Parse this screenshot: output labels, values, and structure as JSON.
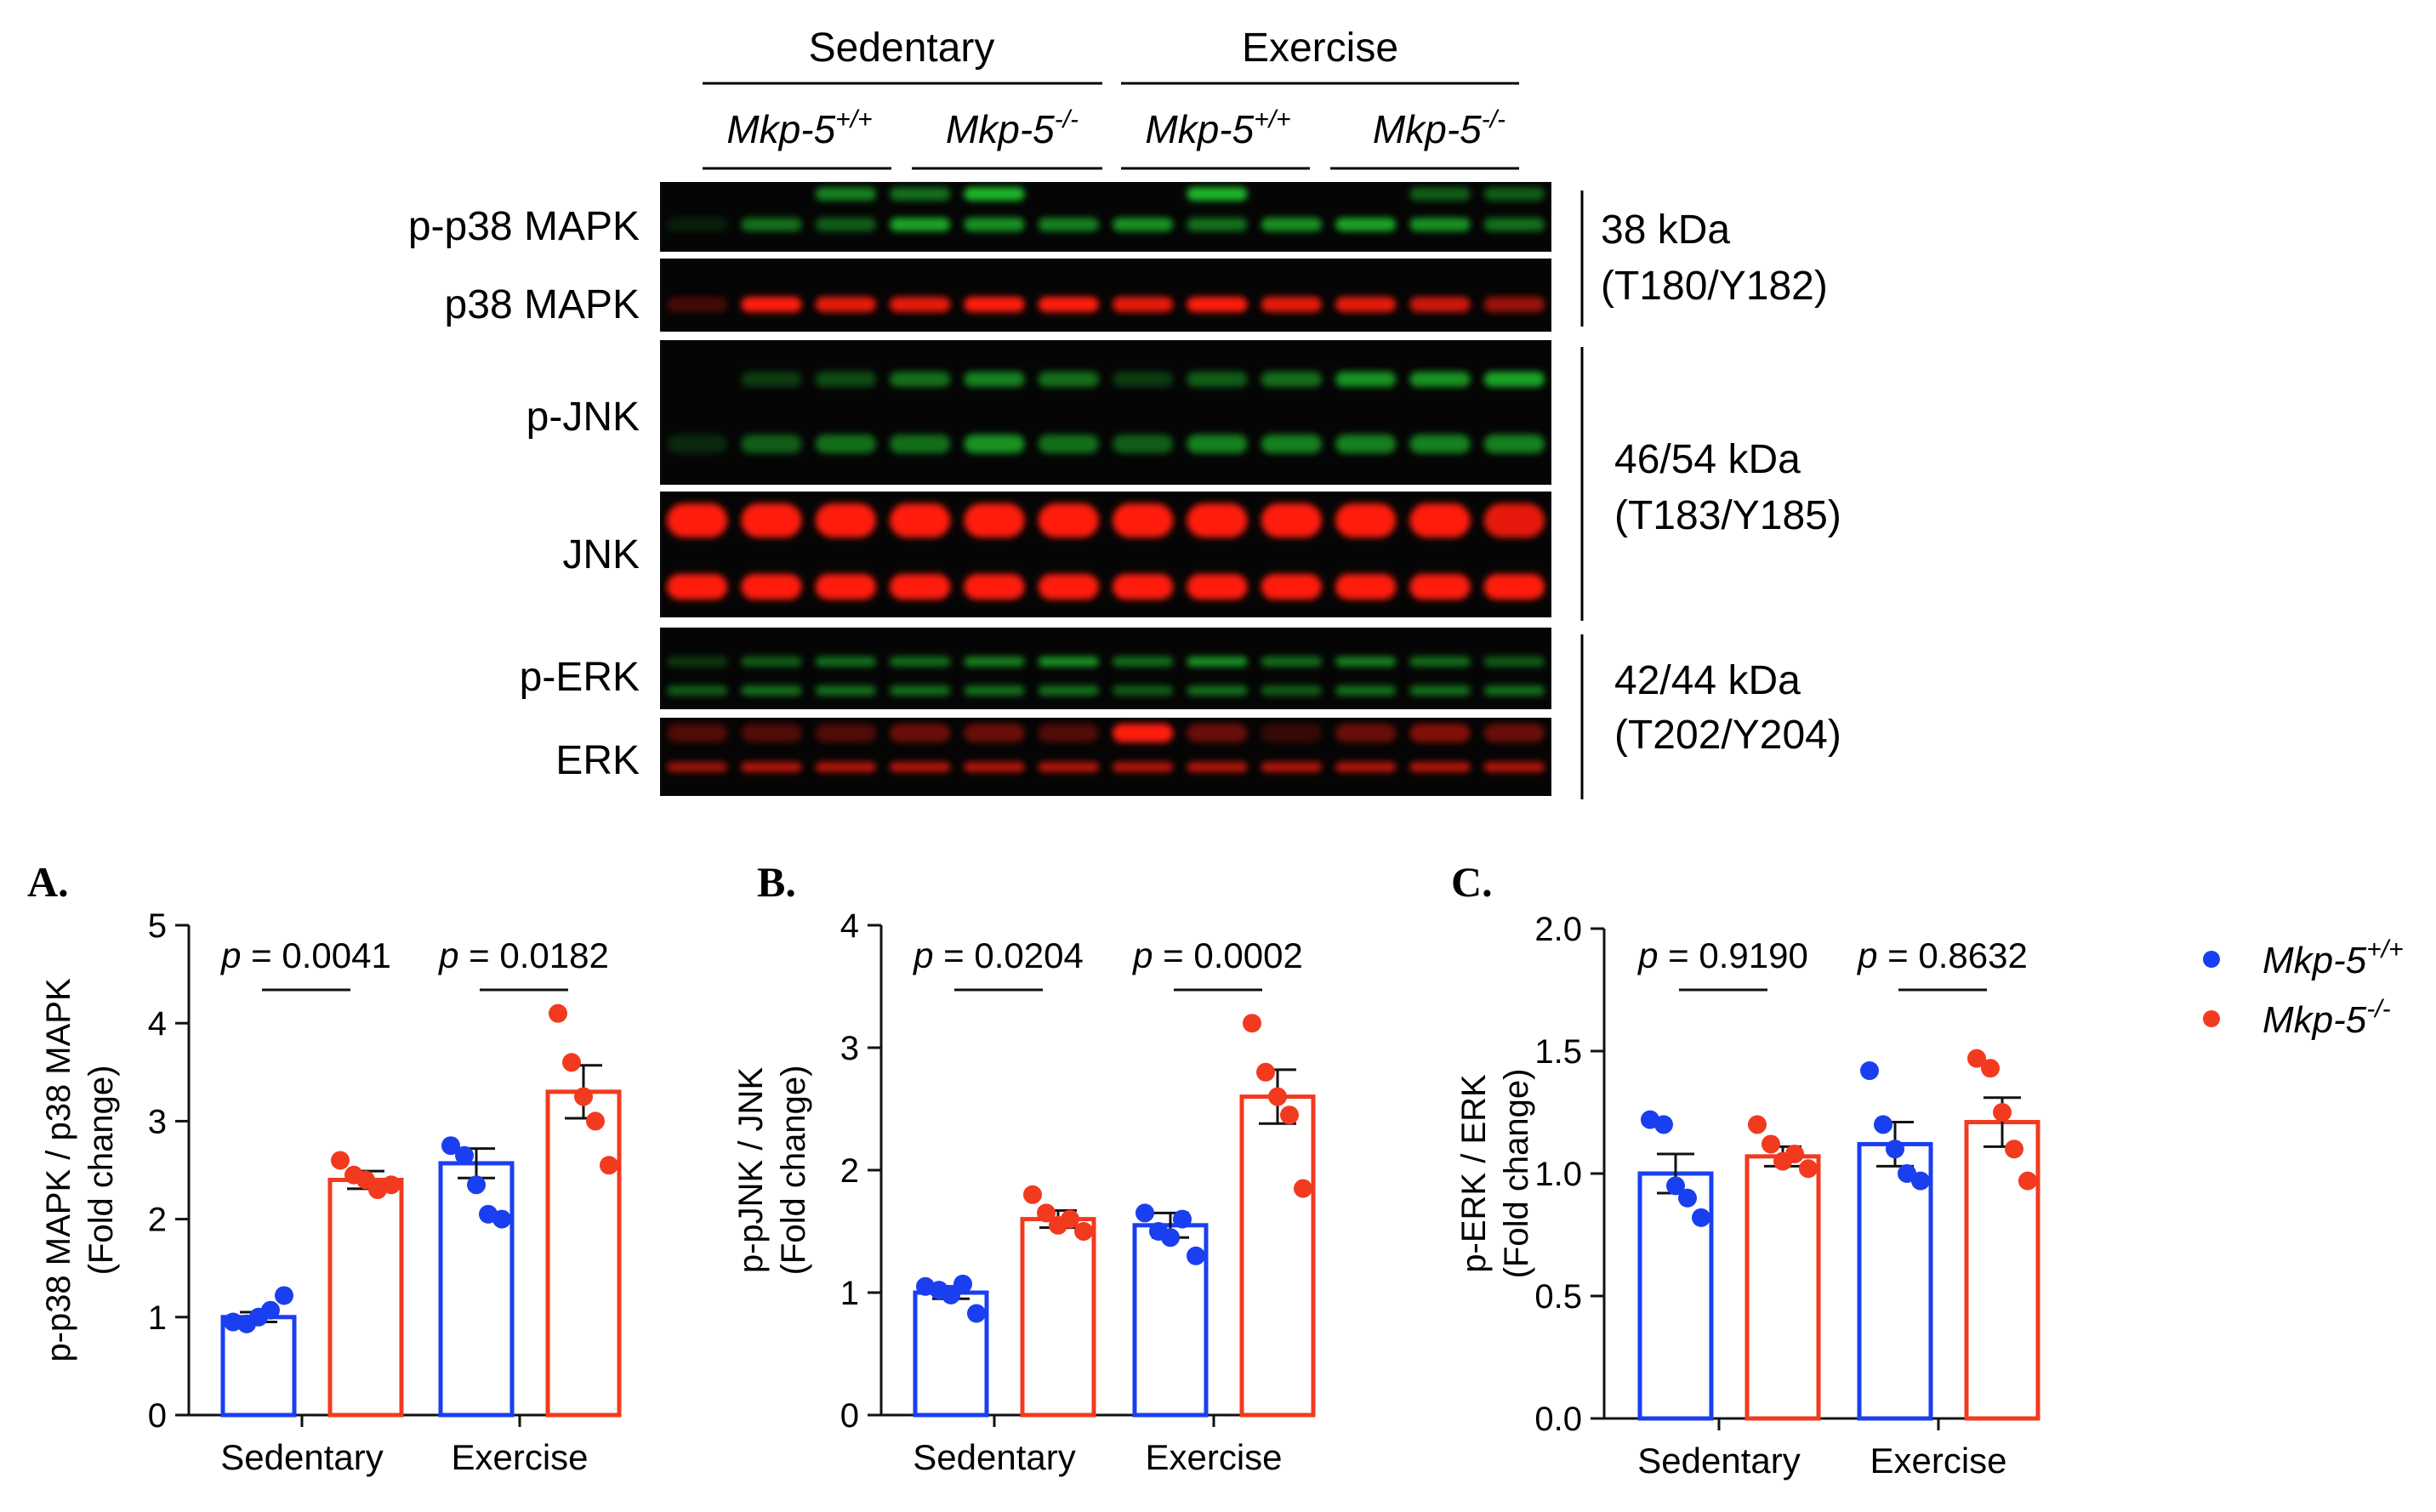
{
  "figure": {
    "blot": {
      "group_headers": [
        "Sedentary",
        "Exercise"
      ],
      "genotypes": [
        {
          "base": "Mkp-5",
          "sup": "+/+"
        },
        {
          "base": "Mkp-5",
          "sup": "-/-"
        },
        {
          "base": "Mkp-5",
          "sup": "+/+"
        },
        {
          "base": "Mkp-5",
          "sup": "-/-"
        }
      ],
      "row_labels": [
        "p-p38 MAPK",
        "p38 MAPK",
        "p-JNK",
        "JNK",
        "p-ERK",
        "ERK"
      ],
      "size_labels": [
        {
          "kda": "38 kDa",
          "site": "(T180/Y182)"
        },
        {
          "kda": "46/54 kDa",
          "site": "(T183/Y185)"
        },
        {
          "kda": "42/44 kDa",
          "site": "(T202/Y204)"
        }
      ],
      "colors": {
        "phospho": "#1fb52b",
        "total": "#ff1a10",
        "background": "#050505"
      }
    },
    "legend": {
      "entries": [
        {
          "base": "Mkp-5",
          "sup": "+/+",
          "color": "#1a3ff0"
        },
        {
          "base": "Mkp-5",
          "sup": "-/-",
          "color": "#f23a1f"
        }
      ]
    }
  },
  "chart_data": [
    {
      "type": "bar",
      "panel": "A.",
      "categories": [
        "Sedentary",
        "Exercise"
      ],
      "ylabel": "p-p38 MAPK / p38 MAPK",
      "ylabel2": "(Fold change)",
      "ylim": [
        0,
        5
      ],
      "yticks": [
        "0",
        "1",
        "2",
        "3",
        "4",
        "5"
      ],
      "series": [
        {
          "name": "Mkp-5+/+",
          "color": "#1a3ff0",
          "values": [
            1.0,
            2.57
          ],
          "sem": [
            0.05,
            0.15
          ],
          "points": [
            [
              0.95,
              0.93,
              1.0,
              1.07,
              1.22
            ],
            [
              2.75,
              2.65,
              2.35,
              2.05,
              2.0
            ]
          ]
        },
        {
          "name": "Mkp-5-/-",
          "color": "#f23a1f",
          "values": [
            2.4,
            3.3
          ],
          "sem": [
            0.09,
            0.27
          ],
          "points": [
            [
              2.6,
              2.45,
              2.4,
              2.3,
              2.35
            ],
            [
              4.1,
              3.6,
              3.25,
              3.0,
              2.55
            ]
          ]
        }
      ],
      "pvalues": [
        "0.0041",
        "0.0182"
      ]
    },
    {
      "type": "bar",
      "panel": "B.",
      "categories": [
        "Sedentary",
        "Exercise"
      ],
      "ylabel": "p-pJNK / JNK",
      "ylabel2": "(Fold change)",
      "ylim": [
        0,
        4
      ],
      "yticks": [
        "0",
        "1",
        "2",
        "3",
        "4"
      ],
      "series": [
        {
          "name": "Mkp-5+/+",
          "color": "#1a3ff0",
          "values": [
            1.0,
            1.55
          ],
          "sem": [
            0.05,
            0.1
          ],
          "points": [
            [
              1.05,
              1.02,
              0.98,
              1.07,
              0.83
            ],
            [
              1.65,
              1.5,
              1.45,
              1.6,
              1.3
            ]
          ]
        },
        {
          "name": "Mkp-5-/-",
          "color": "#f23a1f",
          "values": [
            1.6,
            2.6
          ],
          "sem": [
            0.07,
            0.22
          ],
          "points": [
            [
              1.8,
              1.65,
              1.55,
              1.6,
              1.5
            ],
            [
              3.2,
              2.8,
              2.6,
              2.45,
              1.85
            ]
          ]
        }
      ],
      "pvalues": [
        "0.0204",
        "0.0002"
      ]
    },
    {
      "type": "bar",
      "panel": "C.",
      "categories": [
        "Sedentary",
        "Exercise"
      ],
      "ylabel": "p-ERK / ERK",
      "ylabel2": "(Fold change)",
      "ylim": [
        0,
        2
      ],
      "yticks": [
        "0.0",
        "0.5",
        "1.0",
        "1.5",
        "2.0"
      ],
      "series": [
        {
          "name": "Mkp-5+/+",
          "color": "#1a3ff0",
          "values": [
            1.0,
            1.12
          ],
          "sem": [
            0.08,
            0.09
          ],
          "points": [
            [
              1.22,
              1.2,
              0.95,
              0.9,
              0.82
            ],
            [
              1.42,
              1.2,
              1.1,
              1.0,
              0.97
            ]
          ]
        },
        {
          "name": "Mkp-5-/-",
          "color": "#f23a1f",
          "values": [
            1.07,
            1.21
          ],
          "sem": [
            0.04,
            0.1
          ],
          "points": [
            [
              1.2,
              1.12,
              1.05,
              1.08,
              1.02
            ],
            [
              1.47,
              1.43,
              1.25,
              1.1,
              0.97
            ]
          ]
        }
      ],
      "pvalues": [
        "0.9190",
        "0.8632"
      ]
    }
  ]
}
